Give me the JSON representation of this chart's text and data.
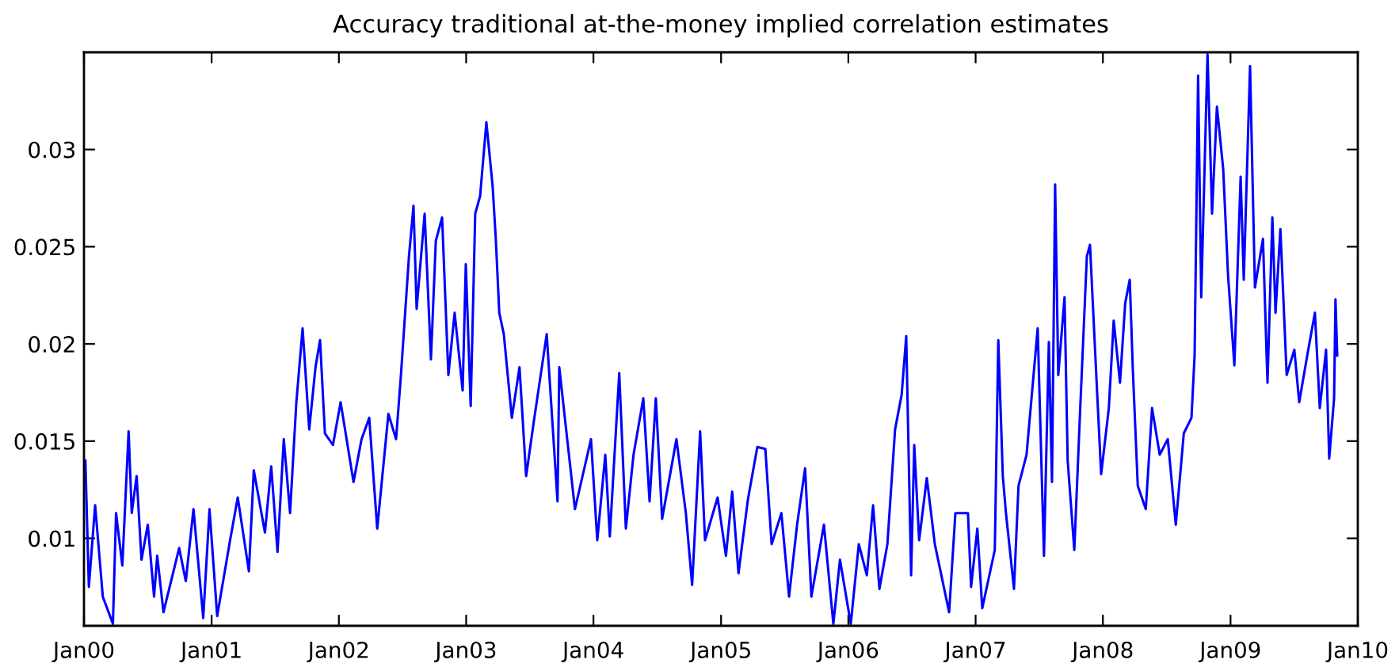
{
  "chart_data": {
    "type": "line",
    "title": "Accuracy traditional at-the-money implied correlation estimates",
    "xlim": [
      "2000-01-01",
      "2010-01-01"
    ],
    "xticks": [
      {
        "value": "2000-01-01",
        "label": "Jan00"
      },
      {
        "value": "2001-01-01",
        "label": "Jan01"
      },
      {
        "value": "2002-01-01",
        "label": "Jan02"
      },
      {
        "value": "2003-01-01",
        "label": "Jan03"
      },
      {
        "value": "2004-01-01",
        "label": "Jan04"
      },
      {
        "value": "2005-01-01",
        "label": "Jan05"
      },
      {
        "value": "2006-01-01",
        "label": "Jan06"
      },
      {
        "value": "2007-01-01",
        "label": "Jan07"
      },
      {
        "value": "2008-01-01",
        "label": "Jan08"
      },
      {
        "value": "2009-01-01",
        "label": "Jan09"
      },
      {
        "value": "2010-01-01",
        "label": "Jan10"
      }
    ],
    "ylim": [
      0.0055,
      0.035
    ],
    "yticks": [
      0.01,
      0.015,
      0.02,
      0.025,
      0.03
    ],
    "grid": false,
    "marker": "none",
    "line_style": "solid",
    "series": [
      {
        "color": "#0000ff",
        "x": [
          "2000-01-05",
          "2000-01-15",
          "2000-02-02",
          "2000-02-24",
          "2000-03-24",
          "2000-04-02",
          "2000-04-20",
          "2000-05-08",
          "2000-05-17",
          "2000-05-31",
          "2000-06-14",
          "2000-07-02",
          "2000-07-20",
          "2000-07-29",
          "2000-08-16",
          "2000-09-30",
          "2000-10-19",
          "2000-11-10",
          "2000-12-08",
          "2000-12-26",
          "2001-01-17",
          "2001-02-23",
          "2001-03-17",
          "2001-04-18",
          "2001-05-02",
          "2001-06-03",
          "2001-06-21",
          "2001-07-09",
          "2001-07-27",
          "2001-08-14",
          "2001-09-01",
          "2001-09-19",
          "2001-10-08",
          "2001-10-26",
          "2001-11-08",
          "2001-11-22",
          "2001-12-15",
          "2002-01-06",
          "2002-02-12",
          "2002-03-07",
          "2002-03-29",
          "2002-04-21",
          "2002-05-23",
          "2002-06-14",
          "2002-06-28",
          "2002-07-21",
          "2002-08-03",
          "2002-08-12",
          "2002-09-04",
          "2002-09-22",
          "2002-10-06",
          "2002-10-24",
          "2002-11-11",
          "2002-11-29",
          "2002-12-22",
          "2002-12-31",
          "2003-01-14",
          "2003-01-27",
          "2003-02-10",
          "2003-02-28",
          "2003-03-18",
          "2003-03-27",
          "2003-04-06",
          "2003-04-19",
          "2003-05-12",
          "2003-06-03",
          "2003-06-22",
          "2003-07-14",
          "2003-08-20",
          "2003-09-20",
          "2003-09-25",
          "2003-11-09",
          "2003-12-25",
          "2004-01-12",
          "2004-02-04",
          "2004-02-17",
          "2004-03-15",
          "2004-04-03",
          "2004-04-25",
          "2004-05-23",
          "2004-06-10",
          "2004-06-28",
          "2004-07-16",
          "2004-08-26",
          "2004-09-22",
          "2004-10-10",
          "2004-11-02",
          "2004-11-16",
          "2004-12-22",
          "2005-01-15",
          "2005-02-02",
          "2005-02-20",
          "2005-03-19",
          "2005-04-15",
          "2005-05-08",
          "2005-05-26",
          "2005-06-23",
          "2005-07-15",
          "2005-08-07",
          "2005-08-30",
          "2005-09-17",
          "2005-10-23",
          "2005-11-19",
          "2005-12-08",
          "2006-01-08",
          "2006-01-31",
          "2006-02-23",
          "2006-03-13",
          "2006-03-31",
          "2006-04-23",
          "2006-05-15",
          "2006-06-03",
          "2006-06-16",
          "2006-06-30",
          "2006-07-09",
          "2006-07-23",
          "2006-08-14",
          "2006-09-06",
          "2006-10-17",
          "2006-11-04",
          "2006-12-10",
          "2006-12-19",
          "2007-01-06",
          "2007-01-20",
          "2007-02-25",
          "2007-03-07",
          "2007-03-20",
          "2007-03-29",
          "2007-04-21",
          "2007-05-04",
          "2007-05-27",
          "2007-06-28",
          "2007-07-16",
          "2007-07-30",
          "2007-08-08",
          "2007-08-17",
          "2007-08-26",
          "2007-09-13",
          "2007-09-22",
          "2007-10-11",
          "2007-10-28",
          "2007-11-16",
          "2007-11-25",
          "2007-12-13",
          "2007-12-27",
          "2008-01-18",
          "2008-02-01",
          "2008-02-19",
          "2008-03-05",
          "2008-03-18",
          "2008-03-27",
          "2008-04-10",
          "2008-05-03",
          "2008-05-21",
          "2008-06-12",
          "2008-07-05",
          "2008-07-28",
          "2008-08-20",
          "2008-09-11",
          "2008-09-20",
          "2008-09-30",
          "2008-10-09",
          "2008-10-27",
          "2008-11-09",
          "2008-11-23",
          "2008-12-11",
          "2008-12-25",
          "2009-01-12",
          "2009-01-30",
          "2009-02-08",
          "2009-02-26",
          "2009-03-12",
          "2009-04-04",
          "2009-04-17",
          "2009-05-01",
          "2009-05-10",
          "2009-05-24",
          "2009-06-11",
          "2009-07-03",
          "2009-07-17",
          "2009-08-09",
          "2009-08-31",
          "2009-09-14",
          "2009-10-02",
          "2009-10-11",
          "2009-10-25",
          "2009-10-29",
          "2009-11-03"
        ],
        "values": [
          0.014,
          0.0075,
          0.0117,
          0.007,
          0.0056,
          0.0113,
          0.0086,
          0.0155,
          0.0113,
          0.0132,
          0.0089,
          0.0107,
          0.007,
          0.0091,
          0.0062,
          0.0095,
          0.0078,
          0.0115,
          0.0059,
          0.0115,
          0.006,
          0.0099,
          0.0121,
          0.0083,
          0.0135,
          0.0103,
          0.0137,
          0.0093,
          0.0151,
          0.0113,
          0.017,
          0.0208,
          0.0156,
          0.0188,
          0.0202,
          0.0154,
          0.0148,
          0.017,
          0.0129,
          0.0151,
          0.0162,
          0.0105,
          0.0164,
          0.0151,
          0.0184,
          0.0245,
          0.0271,
          0.0218,
          0.0267,
          0.0192,
          0.0253,
          0.0265,
          0.0184,
          0.0216,
          0.0176,
          0.0241,
          0.0168,
          0.0267,
          0.0276,
          0.0314,
          0.0281,
          0.0254,
          0.0216,
          0.0205,
          0.0162,
          0.0188,
          0.0132,
          0.016,
          0.0205,
          0.0119,
          0.0188,
          0.0115,
          0.0151,
          0.0099,
          0.0143,
          0.0101,
          0.0185,
          0.0105,
          0.0143,
          0.0172,
          0.0119,
          0.0172,
          0.011,
          0.0151,
          0.0113,
          0.0076,
          0.0155,
          0.0099,
          0.0121,
          0.0091,
          0.0124,
          0.0082,
          0.012,
          0.0147,
          0.0146,
          0.0097,
          0.0113,
          0.007,
          0.0107,
          0.0136,
          0.007,
          0.0107,
          0.0056,
          0.0089,
          0.0056,
          0.0097,
          0.0081,
          0.0117,
          0.0074,
          0.0097,
          0.0156,
          0.0174,
          0.0204,
          0.0081,
          0.0148,
          0.0099,
          0.0131,
          0.0097,
          0.0062,
          0.0113,
          0.0113,
          0.0075,
          0.0105,
          0.0064,
          0.0094,
          0.0202,
          0.0132,
          0.0113,
          0.0074,
          0.0127,
          0.0143,
          0.0208,
          0.0091,
          0.0201,
          0.0129,
          0.0282,
          0.0184,
          0.0224,
          0.014,
          0.0094,
          0.0167,
          0.0245,
          0.0251,
          0.0184,
          0.0133,
          0.0167,
          0.0212,
          0.018,
          0.0221,
          0.0233,
          0.0186,
          0.0127,
          0.0115,
          0.0167,
          0.0143,
          0.0151,
          0.0107,
          0.0154,
          0.0162,
          0.0194,
          0.0338,
          0.0224,
          0.0349,
          0.0267,
          0.0322,
          0.029,
          0.0235,
          0.0189,
          0.0286,
          0.0233,
          0.0343,
          0.0229,
          0.0254,
          0.018,
          0.0265,
          0.0216,
          0.0259,
          0.0184,
          0.0197,
          0.017,
          0.0194,
          0.0216,
          0.0167,
          0.0197,
          0.0141,
          0.0172,
          0.0223,
          0.0194
        ]
      }
    ]
  }
}
